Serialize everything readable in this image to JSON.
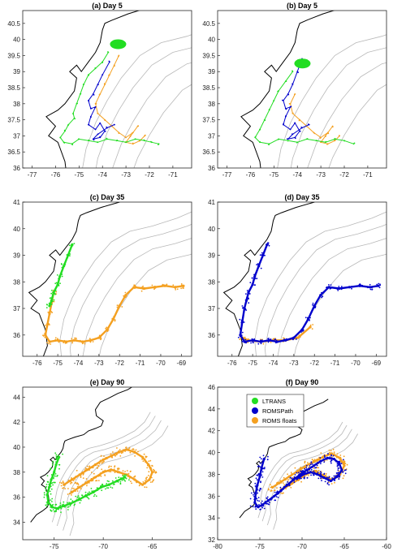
{
  "colors": {
    "ltrans": "#22dd22",
    "romspath": "#0000cc",
    "romsfloats": "#f4a020",
    "coast": "#000000",
    "isobath": "#b8b8b8"
  },
  "legend": {
    "entries": [
      "LTRANS",
      "ROMSPath",
      "ROMS floats"
    ]
  },
  "chart_data": [
    {
      "type": "scatter",
      "title": "(a) Day  5",
      "xticks": [
        -77,
        -76,
        -75,
        -74,
        -73,
        -72,
        -71
      ],
      "yticks": [
        36,
        36.5,
        37,
        37.5,
        38,
        38.5,
        39,
        39.5,
        40,
        40.5
      ],
      "xlim": [
        -77.4,
        -70.2
      ],
      "ylim": [
        36,
        40.9
      ],
      "series": [
        {
          "name": "LTRANS",
          "lon": [
            -73.75,
            -74.0,
            -74.3,
            -74.6,
            -74.8,
            -74.95,
            -75.1,
            -75.25,
            -75.2,
            -75.45,
            -75.6,
            -75.8,
            -75.65,
            -75.3,
            -75.0,
            -74.6,
            -74.2,
            -73.8,
            -73.4,
            -73.0,
            -72.6,
            -72.2,
            -71.9,
            -71.6
          ],
          "lat": [
            39.6,
            39.3,
            39.1,
            38.9,
            38.6,
            38.3,
            38.0,
            37.7,
            37.55,
            37.35,
            37.15,
            36.95,
            36.8,
            36.75,
            36.9,
            36.85,
            36.8,
            36.9,
            36.85,
            36.8,
            36.9,
            36.85,
            36.8,
            36.75
          ]
        },
        {
          "name": "ROMSPath",
          "lon": [
            -73.7,
            -74.0,
            -74.2,
            -74.4,
            -74.6,
            -74.5,
            -74.3,
            -74.5,
            -74.6,
            -74.3,
            -74.1,
            -73.9,
            -74.1,
            -74.4,
            -74.2,
            -73.8,
            -73.5
          ],
          "lat": [
            39.3,
            38.9,
            38.6,
            38.3,
            38.1,
            37.85,
            37.9,
            37.6,
            37.35,
            37.2,
            37.4,
            37.15,
            36.95,
            36.9,
            37.05,
            37.25,
            37.35
          ]
        },
        {
          "name": "ROMS floats",
          "lon": [
            -73.3,
            -73.5,
            -73.7,
            -73.9,
            -74.1,
            -74.3,
            -74.2,
            -73.9,
            -73.6,
            -73.3,
            -73.0,
            -72.7,
            -72.5,
            -72.8,
            -73.0,
            -72.7,
            -72.4,
            -72.2
          ],
          "lat": [
            39.5,
            39.2,
            38.9,
            38.6,
            38.3,
            38.0,
            37.7,
            37.5,
            37.3,
            37.1,
            36.95,
            37.1,
            37.3,
            37.0,
            36.8,
            36.75,
            36.85,
            37.0
          ]
        }
      ]
    },
    {
      "type": "scatter",
      "title": "(b) Day  5",
      "xticks": [
        -77,
        -76,
        -75,
        -74,
        -73,
        -72,
        -71
      ],
      "yticks": [
        36,
        36.5,
        37,
        37.5,
        38,
        38.5,
        39,
        39.5,
        40,
        40.5
      ],
      "xlim": [
        -77.4,
        -70.2
      ],
      "ylim": [
        36,
        40.9
      ],
      "series": [
        {
          "name": "LTRANS",
          "lon": [
            -74.2,
            -74.5,
            -74.8,
            -75.0,
            -75.2,
            -75.4,
            -75.6,
            -75.8,
            -75.6,
            -75.2,
            -74.8,
            -74.4,
            -74.0,
            -73.6,
            -73.2,
            -72.8,
            -72.4,
            -72.0,
            -71.6
          ],
          "lat": [
            39.0,
            38.7,
            38.4,
            38.1,
            37.8,
            37.5,
            37.2,
            36.95,
            36.8,
            36.75,
            36.9,
            36.85,
            36.8,
            36.9,
            36.85,
            36.8,
            36.9,
            36.85,
            36.75
          ]
        },
        {
          "name": "ROMSPath",
          "lon": [
            -73.8,
            -74.0,
            -74.2,
            -74.4,
            -74.6,
            -74.5,
            -74.3,
            -74.5,
            -74.6,
            -74.3,
            -74.1,
            -73.9,
            -74.1,
            -74.4,
            -74.2,
            -73.8,
            -73.5
          ],
          "lat": [
            39.4,
            39.0,
            38.6,
            38.3,
            38.1,
            37.85,
            37.9,
            37.6,
            37.35,
            37.2,
            37.4,
            37.15,
            36.95,
            36.9,
            37.05,
            37.25,
            37.35
          ]
        },
        {
          "name": "ROMS floats",
          "lon": [
            -74.1,
            -74.3,
            -74.2,
            -73.9,
            -73.6,
            -73.3,
            -73.0,
            -72.7,
            -72.5,
            -72.8,
            -73.0,
            -72.7,
            -72.4,
            -72.2
          ],
          "lat": [
            38.3,
            38.0,
            37.7,
            37.5,
            37.3,
            37.1,
            36.95,
            37.1,
            37.3,
            37.0,
            36.8,
            36.75,
            36.85,
            37.0
          ]
        }
      ]
    },
    {
      "type": "scatter",
      "title": "(c) Day  35",
      "xticks": [
        -76,
        -75,
        -74,
        -73,
        -72,
        -71,
        -70,
        -69
      ],
      "yticks": [
        36,
        37,
        38,
        39,
        40,
        41
      ],
      "xlim": [
        -76.7,
        -68.5
      ],
      "ylim": [
        35.2,
        41
      ],
      "series": [
        {
          "name": "LTRANS",
          "lon": [
            -74.3,
            -74.5,
            -74.7,
            -74.9,
            -75.0,
            -75.2,
            -75.3,
            -75.4
          ],
          "lat": [
            39.4,
            39.0,
            38.6,
            38.2,
            37.9,
            37.6,
            37.3,
            37.1
          ]
        },
        {
          "name": "ROMS floats",
          "lon": [
            -75.2,
            -75.3,
            -75.4,
            -75.5,
            -75.6,
            -75.4,
            -75.0,
            -74.6,
            -74.2,
            -73.8,
            -73.4,
            -73.0,
            -72.6,
            -72.3,
            -72.0,
            -71.7,
            -71.3,
            -70.8,
            -70.3,
            -69.8,
            -69.3,
            -68.9
          ],
          "lat": [
            37.6,
            37.2,
            36.8,
            36.4,
            36.0,
            35.75,
            35.8,
            35.75,
            35.8,
            35.75,
            35.8,
            35.9,
            36.2,
            36.6,
            37.1,
            37.5,
            37.8,
            37.75,
            37.8,
            37.85,
            37.8,
            37.85
          ]
        }
      ]
    },
    {
      "type": "scatter",
      "title": "(d) Day  35",
      "xticks": [
        -76,
        -75,
        -74,
        -73,
        -72,
        -71,
        -70,
        -69
      ],
      "yticks": [
        36,
        37,
        38,
        39,
        40,
        41
      ],
      "xlim": [
        -76.7,
        -68.5
      ],
      "ylim": [
        35.2,
        41
      ],
      "series": [
        {
          "name": "ROMSPath",
          "lon": [
            -74.3,
            -74.5,
            -74.7,
            -74.9,
            -75.0,
            -75.2,
            -75.3,
            -75.4,
            -75.5,
            -75.6,
            -75.4,
            -75.0,
            -74.6,
            -74.2,
            -73.8,
            -73.4,
            -73.0,
            -72.6,
            -72.3,
            -72.0,
            -71.7,
            -71.3,
            -70.8,
            -70.3,
            -69.8,
            -69.3,
            -68.9
          ],
          "lat": [
            39.4,
            39.0,
            38.6,
            38.2,
            37.9,
            37.6,
            37.3,
            37.0,
            36.5,
            36.0,
            35.75,
            35.8,
            35.75,
            35.8,
            35.75,
            35.8,
            35.9,
            36.2,
            36.6,
            37.1,
            37.5,
            37.8,
            37.75,
            37.8,
            37.85,
            37.8,
            37.85
          ]
        },
        {
          "name": "ROMS floats",
          "lon": [
            -75.5,
            -75.2,
            -74.6,
            -74.0,
            -73.4,
            -72.8,
            -72.2
          ],
          "lat": [
            35.9,
            35.8,
            35.75,
            35.8,
            35.8,
            35.9,
            36.3
          ]
        }
      ]
    },
    {
      "type": "scatter",
      "title": "(e) Day  90",
      "xticks": [
        -75,
        -70,
        -65
      ],
      "yticks": [
        34,
        36,
        38,
        40,
        42,
        44
      ],
      "xlim": [
        -78.2,
        -61
      ],
      "ylim": [
        32.6,
        44.8
      ],
      "series": [
        {
          "name": "LTRANS",
          "lon": [
            -74.5,
            -74.8,
            -75.0,
            -75.3,
            -75.5,
            -75.7,
            -75.6,
            -75.2,
            -74.7,
            -74.0,
            -73.3,
            -72.5,
            -71.8,
            -71.0,
            -70.2,
            -69.4,
            -68.6,
            -67.8
          ],
          "lat": [
            39.2,
            38.6,
            38.0,
            37.4,
            36.8,
            36.2,
            35.6,
            35.2,
            35.1,
            35.3,
            35.5,
            35.8,
            36.1,
            36.4,
            36.8,
            37.0,
            37.3,
            37.6
          ]
        },
        {
          "name": "ROMS floats",
          "lon": [
            -74.0,
            -73.2,
            -72.4,
            -71.6,
            -70.8,
            -70.0,
            -69.2,
            -68.4,
            -67.6,
            -66.8,
            -66.0,
            -65.4,
            -65.0,
            -65.3,
            -66.0,
            -66.8,
            -67.6,
            -68.4,
            -69.2,
            -70.0,
            -70.8,
            -71.6,
            -72.4,
            -73.2
          ],
          "lat": [
            37.0,
            37.4,
            37.8,
            38.2,
            38.6,
            39.0,
            39.3,
            39.6,
            39.8,
            39.6,
            39.2,
            38.6,
            38.0,
            37.4,
            37.0,
            37.4,
            37.8,
            38.0,
            38.2,
            38.0,
            37.6,
            37.2,
            36.8,
            36.4
          ]
        }
      ]
    },
    {
      "type": "scatter",
      "title": "(f) Day  90",
      "xticks": [
        -80,
        -75,
        -70,
        -65,
        -60
      ],
      "yticks": [
        32,
        34,
        36,
        38,
        40,
        42,
        44,
        46
      ],
      "xlim": [
        -80,
        -60
      ],
      "ylim": [
        32,
        46
      ],
      "legend": "top-left",
      "series": [
        {
          "name": "ROMSPath",
          "lon": [
            -74.5,
            -74.8,
            -75.0,
            -75.3,
            -75.5,
            -75.6,
            -75.2,
            -74.7,
            -74.0,
            -73.3,
            -72.5,
            -71.8,
            -71.0,
            -70.2,
            -69.4,
            -68.6,
            -67.8,
            -67.0,
            -66.2,
            -65.6,
            -65.3,
            -65.8,
            -66.6,
            -67.4,
            -68.2,
            -69.0,
            -69.8,
            -70.6
          ],
          "lat": [
            39.4,
            38.6,
            37.8,
            37.0,
            36.2,
            35.4,
            35.0,
            35.2,
            35.6,
            36.0,
            36.5,
            37.0,
            37.5,
            38.0,
            38.4,
            38.8,
            39.2,
            39.5,
            39.4,
            39.0,
            38.4,
            37.8,
            37.4,
            37.7,
            38.0,
            38.2,
            38.0,
            37.6
          ]
        },
        {
          "name": "ROMS floats",
          "lon": [
            -73.5,
            -72.5,
            -71.5,
            -70.5,
            -69.5,
            -68.5,
            -67.5,
            -66.5,
            -65.5,
            -65.0,
            -65.5,
            -66.5,
            -67.5,
            -68.5,
            -69.5,
            -70.5,
            -71.5,
            -72.5
          ],
          "lat": [
            36.8,
            37.3,
            37.8,
            38.3,
            38.8,
            39.2,
            39.6,
            39.9,
            39.5,
            38.8,
            38.0,
            37.5,
            37.9,
            38.3,
            38.0,
            37.5,
            37.0,
            36.6
          ]
        }
      ]
    }
  ]
}
